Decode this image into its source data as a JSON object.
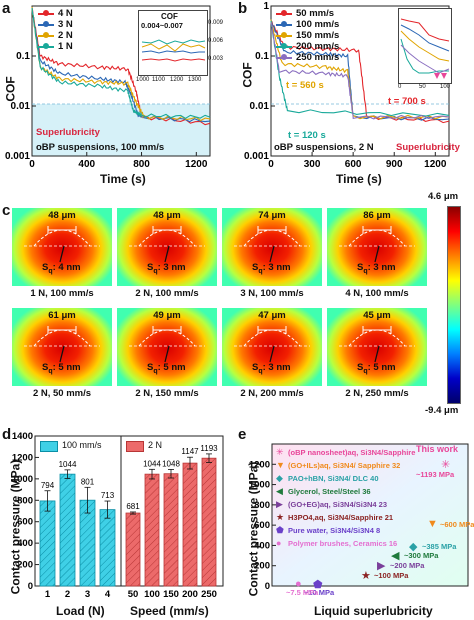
{
  "panels": {
    "a": {
      "letter": "a",
      "chart_data": {
        "type": "line",
        "xlabel": "Time (s)",
        "ylabel": "COF",
        "xlim": [
          0,
          1300
        ],
        "ylim_log": [
          0.001,
          1
        ],
        "x_ticks": [
          "0",
          "400",
          "800",
          "1200"
        ],
        "y_ticks": [
          "0.001",
          "0.01",
          "0.1"
        ],
        "series": [
          {
            "name": "4 N",
            "color": "#e3262b",
            "points": [
              [
                0,
                0.9
              ],
              [
                60,
                0.1
              ],
              [
                200,
                0.07
              ],
              [
                500,
                0.06
              ],
              [
                700,
                0.055
              ],
              [
                760,
                0.02
              ],
              [
                800,
                0.006
              ],
              [
                1300,
                0.0045
              ]
            ]
          },
          {
            "name": "3 N",
            "color": "#2b67b5",
            "points": [
              [
                0,
                0.9
              ],
              [
                60,
                0.08
              ],
              [
                200,
                0.045
              ],
              [
                500,
                0.035
              ],
              [
                680,
                0.03
              ],
              [
                720,
                0.018
              ],
              [
                780,
                0.006
              ],
              [
                1300,
                0.005
              ]
            ]
          },
          {
            "name": "2 N",
            "color": "#e0a400",
            "points": [
              [
                0,
                0.9
              ],
              [
                60,
                0.06
              ],
              [
                200,
                0.035
              ],
              [
                500,
                0.03
              ],
              [
                700,
                0.028
              ],
              [
                760,
                0.012
              ],
              [
                820,
                0.006
              ],
              [
                1300,
                0.0055
              ]
            ]
          },
          {
            "name": "1 N",
            "color": "#19a99a",
            "points": [
              [
                0,
                0.9
              ],
              [
                60,
                0.06
              ],
              [
                200,
                0.03
              ],
              [
                500,
                0.025
              ],
              [
                700,
                0.02
              ],
              [
                740,
                0.008
              ],
              [
                800,
                0.0065
              ],
              [
                1300,
                0.006
              ]
            ]
          }
        ],
        "inset": {
          "title": "COF",
          "range": "0.004~0.007",
          "x_ticks": [
            "1000",
            "1100",
            "1200",
            "1300"
          ],
          "y_ticks": [
            "0.003",
            "0.006",
            "0.009"
          ]
        },
        "annotations": [
          "Superlubricity",
          "oBP suspensions, 100 mm/s"
        ]
      }
    },
    "b": {
      "letter": "b",
      "chart_data": {
        "type": "line",
        "xlabel": "Time (s)",
        "ylabel": "COF",
        "xlim": [
          0,
          1300
        ],
        "ylim_log": [
          0.001,
          1
        ],
        "x_ticks": [
          "0",
          "300",
          "600",
          "900",
          "1200"
        ],
        "y_ticks": [
          "0.001",
          "0.01",
          "0.1",
          "1"
        ],
        "series": [
          {
            "name": "50 mm/s",
            "color": "#e3262b",
            "points": [
              [
                0,
                0.5
              ],
              [
                100,
                0.15
              ],
              [
                400,
                0.14
              ],
              [
                640,
                0.13
              ],
              [
                700,
                0.006
              ],
              [
                1300,
                0.005
              ]
            ]
          },
          {
            "name": "100 mm/s",
            "color": "#2b67b5",
            "points": [
              [
                0,
                0.5
              ],
              [
                100,
                0.12
              ],
              [
                400,
                0.11
              ],
              [
                560,
                0.1
              ],
              [
                600,
                0.006
              ],
              [
                1300,
                0.0055
              ]
            ]
          },
          {
            "name": "150 mm/s",
            "color": "#e0a400",
            "points": [
              [
                0,
                0.5
              ],
              [
                80,
                0.07
              ],
              [
                400,
                0.06
              ],
              [
                560,
                0.05
              ],
              [
                600,
                0.006
              ],
              [
                1300,
                0.006
              ]
            ]
          },
          {
            "name": "200 mm/s",
            "color": "#19a99a",
            "points": [
              [
                0,
                0.5
              ],
              [
                60,
                0.04
              ],
              [
                120,
                0.008
              ],
              [
                1300,
                0.0065
              ]
            ]
          },
          {
            "name": "250 mm/s",
            "color": "#8a6fc0",
            "points": [
              [
                0,
                0.5
              ],
              [
                60,
                0.05
              ],
              [
                400,
                0.045
              ],
              [
                560,
                0.04
              ],
              [
                600,
                0.006
              ],
              [
                1300,
                0.006
              ]
            ]
          }
        ],
        "inset": {
          "x_ticks": [
            "0",
            "50",
            "100"
          ]
        },
        "annotations": [
          "t = 560 s",
          "t = 700 s",
          "t = 120 s",
          "oBP suspensions, 2 N",
          "Superlubricity"
        ]
      }
    },
    "c": {
      "letter": "c",
      "colorbar": {
        "max": "4.6 μm",
        "min": "-9.4 μm"
      },
      "tiles": [
        {
          "width": "48 μm",
          "sq": "S",
          "sq_sub": "q",
          "sq_val": ": 4 nm",
          "caption": "1 N, 100 mm/s"
        },
        {
          "width": "48 μm",
          "sq": "S",
          "sq_sub": "q",
          "sq_val": ": 3 nm",
          "caption": "2 N, 100 mm/s"
        },
        {
          "width": "74 μm",
          "sq": "S",
          "sq_sub": "q",
          "sq_val": ": 3 nm",
          "caption": "3 N, 100 mm/s"
        },
        {
          "width": "86 μm",
          "sq": "S",
          "sq_sub": "q",
          "sq_val": ": 3 nm",
          "caption": "4 N, 100 mm/s"
        },
        {
          "width": "61 μm",
          "sq": "S",
          "sq_sub": "q",
          "sq_val": ": 5 nm",
          "caption": "2 N, 50 mm/s"
        },
        {
          "width": "49 μm",
          "sq": "S",
          "sq_sub": "q",
          "sq_val": ": 5 nm",
          "caption": "2 N, 150 mm/s"
        },
        {
          "width": "47 μm",
          "sq": "S",
          "sq_sub": "q",
          "sq_val": ": 3 nm",
          "caption": "2 N, 200 mm/s"
        },
        {
          "width": "45 μm",
          "sq": "S",
          "sq_sub": "q",
          "sq_val": ": 5 nm",
          "caption": "2 N, 250 mm/s"
        }
      ]
    },
    "d": {
      "letter": "d",
      "chart_data": {
        "type": "bar",
        "ylabel": "Contact pressure (MPa)",
        "ylim": [
          0,
          1400
        ],
        "y_ticks": [
          "0",
          "200",
          "400",
          "600",
          "800",
          "1000",
          "1200",
          "1400"
        ],
        "groups": [
          {
            "name": "100 mm/s",
            "xlabel": "Load (N)",
            "color": "#3fd0e6",
            "categories": [
              "1",
              "2",
              "3",
              "4"
            ],
            "values": [
              794,
              1044,
              801,
              713
            ],
            "value_labels": [
              "794",
              "1044",
              "801",
              "713"
            ]
          },
          {
            "name": "2 N",
            "xlabel": "Speed (mm/s)",
            "color": "#ec6a6a",
            "categories": [
              "50",
              "100",
              "150",
              "200",
              "250"
            ],
            "values": [
              681,
              1044,
              1048,
              1147,
              1193
            ],
            "value_labels": [
              "681",
              "1044",
              "1048",
              "1147",
              "1193"
            ]
          }
        ]
      }
    },
    "e": {
      "letter": "e",
      "chart_data": {
        "type": "scatter",
        "xlabel": "Liquid superlubricity",
        "ylabel": "Contact pressure (MPa)",
        "ylim": [
          0,
          1400
        ],
        "y_ticks": [
          "0",
          "200",
          "400",
          "600",
          "800",
          "1000",
          "1200"
        ],
        "this_work": "This work",
        "legend": [
          {
            "label": "(oBP nanosheet)aq, Si3N4/Sapphire",
            "color": "#e8479a",
            "marker": "✳"
          },
          {
            "label": "(GO+ILs)aq, Si3N4/ Sapphire 32",
            "color": "#f08a1c",
            "marker": "▼"
          },
          {
            "label": "PAO+hBN, Si3N4/ DLC 40",
            "color": "#2aa1a6",
            "marker": "◆"
          },
          {
            "label": "Glycerol, Steel/Steel 36",
            "color": "#1f7a3c",
            "marker": "◀"
          },
          {
            "label": "(GO+EG)aq, Si3N4/Si3N4 23",
            "color": "#7a3f9a",
            "marker": "▶"
          },
          {
            "label": "H3PO4,aq, Si3N4/Sapphire 21",
            "color": "#8b2323",
            "marker": "★"
          },
          {
            "label": "Pure water, Si3N4/Si3N4 8",
            "color": "#6a40c9",
            "marker": "⬟"
          },
          {
            "label": "Polymer brushes, Ceramics 16",
            "color": "#e46fd0",
            "marker": "●"
          }
        ],
        "points": [
          {
            "label": "~1193 MPa",
            "value": 1193,
            "color": "#e8479a",
            "marker": "✳"
          },
          {
            "label": "~600 MPa",
            "value": 600,
            "color": "#f08a1c",
            "marker": "▼"
          },
          {
            "label": "~385 MPa",
            "value": 385,
            "color": "#2aa1a6",
            "marker": "◆"
          },
          {
            "label": "~300 MPa",
            "value": 300,
            "color": "#1f7a3c",
            "marker": "◀"
          },
          {
            "label": "~200 MPa",
            "value": 200,
            "color": "#7a3f9a",
            "marker": "▶"
          },
          {
            "label": "~100 MPa",
            "value": 100,
            "color": "#8b2323",
            "marker": "★"
          },
          {
            "label": "~10 MPa",
            "value": 10,
            "color": "#6a40c9",
            "marker": "⬟"
          },
          {
            "label": "~7.5 MPa",
            "value": 7.5,
            "color": "#e46fd0",
            "marker": "●"
          }
        ]
      }
    }
  }
}
